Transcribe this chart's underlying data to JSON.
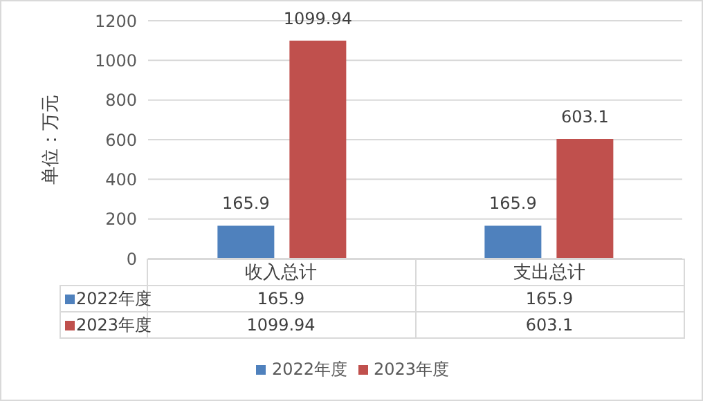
{
  "chart_data": {
    "type": "bar",
    "ylabel": "单位：万元",
    "categories": [
      "收入总计",
      "支出总计"
    ],
    "series": [
      {
        "name": "2022年度",
        "color": "#4f81bd",
        "values": [
          165.9,
          165.9
        ],
        "value_labels": [
          "165.9",
          "165.9"
        ]
      },
      {
        "name": "2023年度",
        "color": "#c0504d",
        "values": [
          1099.94,
          603.1
        ],
        "value_labels": [
          "1099.94",
          "603.1"
        ]
      }
    ],
    "ylim": [
      0,
      1200
    ],
    "yticks": [
      0,
      200,
      400,
      600,
      800,
      1000,
      1200
    ],
    "annotations": [
      "165.9",
      "165.9",
      "1099.94",
      "603.1"
    ],
    "grid": "y",
    "legend": "bottom"
  }
}
